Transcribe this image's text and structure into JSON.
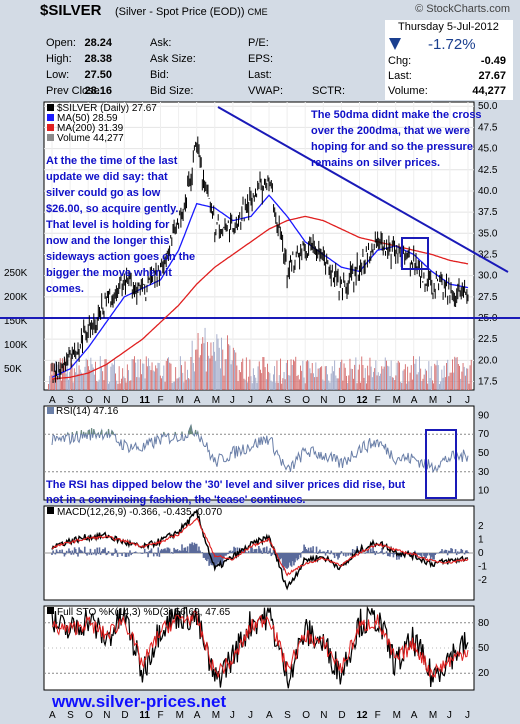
{
  "header": {
    "ticker": "$SILVER",
    "description": "(Silver - Spot Price (EOD))",
    "exchange": "CME",
    "brand": "© StockCharts.com",
    "date": "Thursday 5-Jul-2012",
    "change_pct": "-1.72%",
    "fields": [
      {
        "label": "Open:",
        "value": "28.24"
      },
      {
        "label": "High:",
        "value": "28.38"
      },
      {
        "label": "Low:",
        "value": "27.50"
      },
      {
        "label": "Prev Close:",
        "value": "28.16"
      }
    ],
    "mid_labels": [
      "Ask:",
      "Ask Size:",
      "Bid:",
      "Bid Size:"
    ],
    "right_labels": [
      "P/E:",
      "EPS:",
      "Last:",
      "VWAP:",
      "SCTR:"
    ],
    "right_fields": [
      {
        "label": "Chg:",
        "value": "-0.49"
      },
      {
        "label": "Last:",
        "value": "27.67"
      },
      {
        "label": "Volume:",
        "value": "44,277"
      }
    ]
  },
  "colors": {
    "background": "#d3dbe5",
    "panel": "#ffffff",
    "price": "#000000",
    "ma50": "#1a1aff",
    "ma200": "#e02020",
    "annotation": "#1010c8",
    "volume_up": "#d46a6a",
    "volume_down": "#a0a8c8"
  },
  "chart_data": [
    {
      "type": "line",
      "name": "price",
      "legend": [
        "$SILVER (Daily) 27.67",
        "MA(50) 28.59",
        "MA(200) 31.39",
        "Volume 44,277"
      ],
      "x_labels": [
        "A",
        "S",
        "O",
        "N",
        "D",
        "11",
        "F",
        "M",
        "A",
        "M",
        "J",
        "J",
        "A",
        "S",
        "O",
        "N",
        "D",
        "12",
        "F",
        "M",
        "A",
        "M",
        "J",
        "J"
      ],
      "y_ticks": [
        17.5,
        20.0,
        22.5,
        25.0,
        27.5,
        30.0,
        32.5,
        35.0,
        37.5,
        40.0,
        42.5,
        45.0,
        47.5,
        50.0
      ],
      "ylim": [
        16.5,
        50.5
      ],
      "volume_ticks": [
        "250K",
        "200K",
        "150K",
        "100K",
        "50K"
      ],
      "x": [
        "2010-08",
        "2010-09",
        "2010-10",
        "2010-11",
        "2010-12",
        "2011-01",
        "2011-02",
        "2011-03",
        "2011-04",
        "2011-05",
        "2011-06",
        "2011-07",
        "2011-08",
        "2011-09",
        "2011-10",
        "2011-11",
        "2011-12",
        "2012-01",
        "2012-02",
        "2012-03",
        "2012-04",
        "2012-05",
        "2012-06",
        "2012-07"
      ],
      "series": [
        {
          "name": "$SILVER (Daily)",
          "values": [
            18.2,
            20.5,
            23.5,
            27.0,
            29.5,
            28.0,
            31.0,
            36.0,
            45.0,
            36.0,
            35.5,
            39.0,
            41.5,
            30.5,
            33.5,
            32.0,
            28.5,
            31.0,
            34.0,
            32.5,
            31.5,
            29.0,
            28.0,
            27.67
          ]
        },
        {
          "name": "MA(50)",
          "values": [
            18.0,
            19.0,
            21.5,
            24.5,
            27.5,
            28.5,
            29.5,
            33.0,
            38.5,
            38.0,
            36.5,
            37.0,
            39.5,
            37.0,
            34.0,
            32.5,
            31.0,
            30.5,
            33.0,
            33.5,
            32.5,
            30.5,
            29.0,
            28.59
          ]
        },
        {
          "name": "MA(200)",
          "values": [
            17.8,
            18.0,
            18.5,
            19.5,
            21.0,
            22.5,
            24.5,
            26.5,
            29.0,
            31.0,
            32.5,
            34.0,
            35.5,
            36.5,
            37.0,
            36.5,
            35.5,
            34.5,
            34.0,
            33.5,
            33.0,
            32.5,
            31.8,
            31.39
          ]
        }
      ],
      "support_level": 25.0,
      "annotations": [
        "At the the time of the last update we did say: that silver could go as low $26.00, so acquire gently. That level is holding for now and the longer this sideways action goes on the bigger the move when it comes.",
        "The 50dma didnt make the cross over the 200dma, that we were hoping for and so the pressure remains on silver prices."
      ]
    },
    {
      "type": "line",
      "name": "rsi",
      "legend": "RSI(14) 47.16",
      "y_ticks": [
        10,
        30,
        50,
        70,
        90
      ],
      "ylim": [
        0,
        100
      ],
      "values": [
        62,
        66,
        70,
        72,
        58,
        55,
        65,
        68,
        75,
        40,
        50,
        58,
        66,
        30,
        52,
        48,
        38,
        55,
        62,
        45,
        44,
        35,
        45,
        47.16
      ],
      "annotation": "The RSI has dipped below the '30' level and silver prices did rise, but not in a convincing fashion, the 'tease' continues."
    },
    {
      "type": "line",
      "name": "macd",
      "legend": [
        "MACD(12,26,9) -0.366, -0.435, 0.070"
      ],
      "y_ticks": [
        2,
        1,
        0,
        -1,
        -2
      ],
      "ylim": [
        -3.5,
        3.5
      ],
      "macd": [
        0.5,
        0.9,
        1.2,
        1.3,
        0.8,
        0.4,
        0.9,
        1.6,
        3.0,
        -1.2,
        -0.3,
        0.6,
        1.2,
        -2.6,
        -0.5,
        -0.3,
        -1.1,
        0.2,
        0.8,
        0.1,
        -0.2,
        -0.8,
        -0.6,
        -0.366
      ],
      "signal": [
        0.4,
        0.8,
        1.1,
        1.2,
        0.9,
        0.5,
        0.8,
        1.4,
        2.6,
        -0.2,
        -0.5,
        0.5,
        1.0,
        -1.6,
        -0.8,
        -0.4,
        -0.9,
        0.0,
        0.7,
        0.2,
        -0.1,
        -0.6,
        -0.7,
        -0.435
      ]
    },
    {
      "type": "line",
      "name": "stochastic",
      "legend": [
        "Full STO %K(14,3) %D(3) 56.69, 47.65"
      ],
      "y_ticks": [
        80,
        50,
        20
      ],
      "ylim": [
        0,
        100
      ],
      "k": [
        80,
        70,
        85,
        60,
        90,
        20,
        75,
        90,
        85,
        10,
        40,
        80,
        90,
        15,
        70,
        55,
        20,
        80,
        85,
        30,
        60,
        15,
        40,
        56.69
      ],
      "d": [
        75,
        72,
        80,
        65,
        85,
        30,
        70,
        85,
        85,
        20,
        35,
        75,
        88,
        25,
        65,
        55,
        25,
        75,
        82,
        35,
        55,
        20,
        35,
        47.65
      ]
    }
  ],
  "footer": {
    "website": "www.silver-prices.net"
  }
}
